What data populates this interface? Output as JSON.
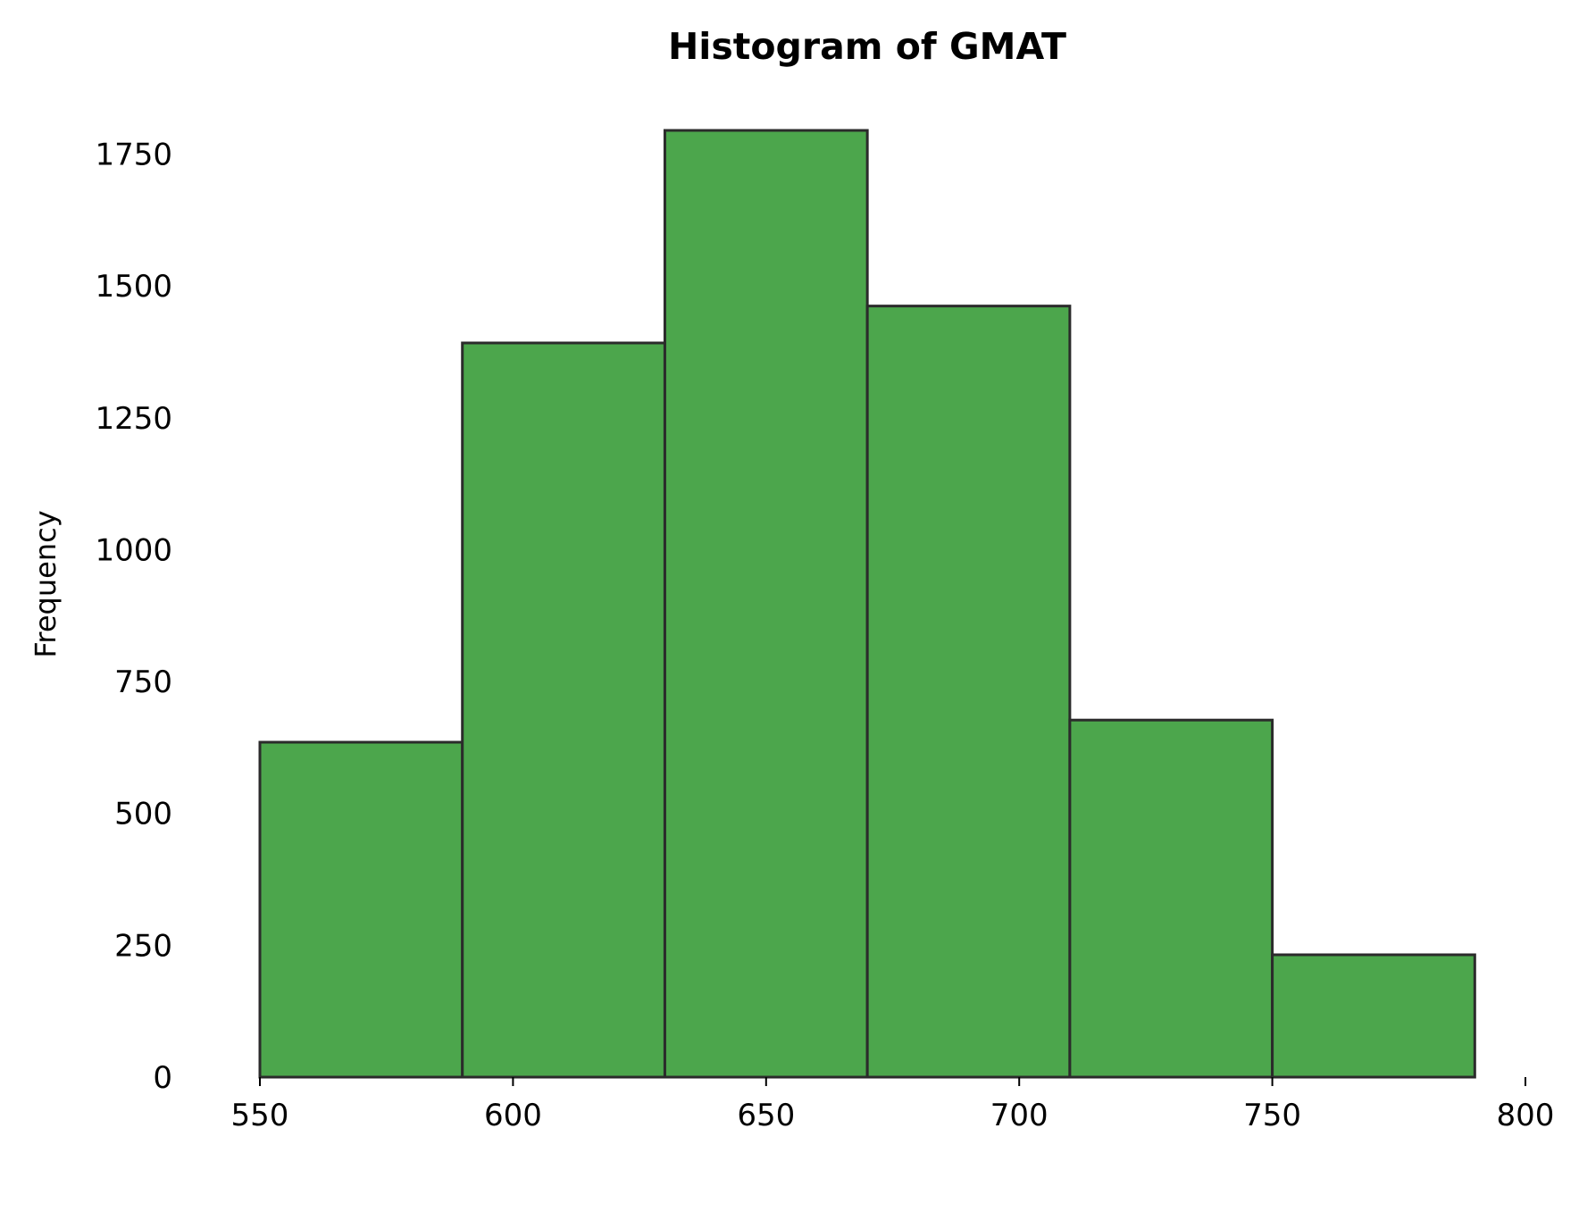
{
  "chart_data": {
    "type": "bar",
    "title": "Histogram of GMAT",
    "xlabel": "",
    "ylabel": "Frequency",
    "bins": [
      {
        "start": 550,
        "end": 590,
        "count": 635
      },
      {
        "start": 590,
        "end": 630,
        "count": 1392
      },
      {
        "start": 630,
        "end": 670,
        "count": 1795
      },
      {
        "start": 670,
        "end": 710,
        "count": 1462
      },
      {
        "start": 710,
        "end": 750,
        "count": 677
      },
      {
        "start": 750,
        "end": 790,
        "count": 232
      }
    ],
    "x_ticks": [
      550,
      600,
      650,
      700,
      750,
      800
    ],
    "y_ticks": [
      0,
      250,
      500,
      750,
      1000,
      1250,
      1500,
      1750
    ],
    "xlim": [
      550,
      800
    ],
    "ylim": [
      0,
      1795
    ],
    "grid": false,
    "legend": "none",
    "colors": {
      "bar_fill": "#4ca64c",
      "bar_edge": "#2b2b2b"
    }
  }
}
